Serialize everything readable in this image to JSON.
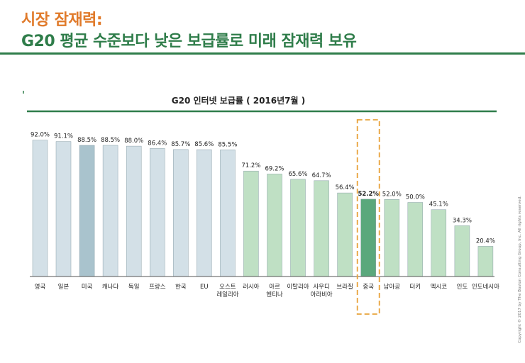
{
  "header": {
    "title_line1": "시장 잠재력:",
    "title_line2": "G20 평균 수준보다 낮은 보급률로 미래 잠재력 보유"
  },
  "copyright": "Copyright © 2017 by The Boston Consulting Group, Inc. All rights reserved.",
  "colors": {
    "title_orange": "#e07a2a",
    "title_green": "#2f7d4a",
    "bar_light_blue": "#d3e0e7",
    "bar_blue_highlight": "#a9c3cd",
    "bar_light_green": "#bfe0c4",
    "bar_dark_green": "#5aa87c",
    "highlight_box": "#e8a23a"
  },
  "chart_data": {
    "type": "bar",
    "title": "G20 인터넷 보급률 ( 2016년7월 )",
    "categories": [
      [
        "영국"
      ],
      [
        "일본"
      ],
      [
        "미국"
      ],
      [
        "캐나다"
      ],
      [
        "독일"
      ],
      [
        "프랑스"
      ],
      [
        "한국"
      ],
      [
        "EU"
      ],
      [
        "오스트",
        "레일리아"
      ],
      [
        "러시아"
      ],
      [
        "아르",
        "헨티나"
      ],
      [
        "이탈리아"
      ],
      [
        "사우디",
        "아라비아"
      ],
      [
        "브라질"
      ],
      [
        "중국"
      ],
      [
        "남아공"
      ],
      [
        "터키"
      ],
      [
        "멕시코"
      ],
      [
        "인도"
      ],
      [
        "인도네시아"
      ]
    ],
    "values": [
      92.0,
      91.1,
      88.5,
      88.5,
      88.0,
      86.4,
      85.7,
      85.6,
      85.5,
      71.2,
      69.2,
      65.6,
      64.7,
      56.4,
      52.2,
      52.0,
      50.0,
      45.1,
      34.3,
      20.4
    ],
    "value_labels": [
      "92.0%",
      "91.1%",
      "88.5%",
      "88.5%",
      "88.0%",
      "86.4%",
      "85.7%",
      "85.6%",
      "85.5%",
      "71.2%",
      "69.2%",
      "65.6%",
      "64.7%",
      "56.4%",
      "52.2%",
      "52.0%",
      "50.0%",
      "45.1%",
      "34.3%",
      "20.4%"
    ],
    "bar_groups": [
      "blue",
      "blue",
      "blue-highlight",
      "blue",
      "blue",
      "blue",
      "blue",
      "blue",
      "blue",
      "green",
      "green",
      "green",
      "green",
      "green",
      "green-highlight",
      "green",
      "green",
      "green",
      "green",
      "green"
    ],
    "highlighted_category": "중국",
    "ylim": [
      0,
      100
    ],
    "grid": false,
    "legend": "none"
  }
}
